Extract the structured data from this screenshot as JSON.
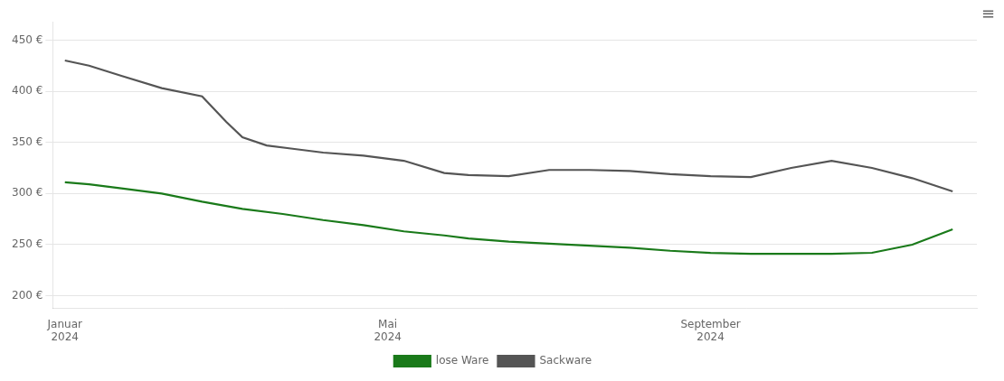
{
  "chart_data": {
    "type": "line",
    "series": [
      {
        "name": "lose Ware",
        "color": "#1a7a1a",
        "x": [
          0,
          0.3,
          0.7,
          1.2,
          1.7,
          2.2,
          2.7,
          3.2,
          3.7,
          4.2,
          4.7,
          5.0,
          5.5,
          6.0,
          6.5,
          7.0,
          7.5,
          8.0,
          8.5,
          9.0,
          9.5,
          10.0,
          10.5,
          11.0
        ],
        "values": [
          311,
          309,
          305,
          300,
          292,
          285,
          280,
          274,
          269,
          263,
          259,
          256,
          253,
          251,
          249,
          247,
          244,
          242,
          241,
          241,
          241,
          242,
          250,
          265
        ]
      },
      {
        "name": "Sackware",
        "color": "#555555",
        "x": [
          0,
          0.3,
          0.7,
          1.2,
          1.7,
          2.0,
          2.2,
          2.5,
          2.8,
          3.2,
          3.7,
          4.2,
          4.7,
          5.0,
          5.5,
          6.0,
          6.5,
          7.0,
          7.5,
          8.0,
          8.5,
          9.0,
          9.5,
          10.0,
          10.5,
          11.0
        ],
        "values": [
          430,
          425,
          415,
          403,
          395,
          370,
          355,
          347,
          344,
          340,
          337,
          332,
          320,
          318,
          317,
          323,
          323,
          322,
          319,
          317,
          316,
          325,
          332,
          325,
          315,
          302
        ]
      }
    ],
    "xlim": [
      -0.15,
      11.3
    ],
    "xticks": [
      {
        "value": 0,
        "label": "Januar\n2024"
      },
      {
        "value": 4,
        "label": "Mai\n2024"
      },
      {
        "value": 8,
        "label": "September\n2024"
      }
    ],
    "ylim": [
      188,
      468
    ],
    "yticks": [
      {
        "value": 200,
        "label": "200 €"
      },
      {
        "value": 250,
        "label": "250 €"
      },
      {
        "value": 300,
        "label": "300 €"
      },
      {
        "value": 350,
        "label": "350 €"
      },
      {
        "value": 400,
        "label": "400 €"
      },
      {
        "value": 450,
        "label": "450 €"
      }
    ],
    "grid": "y",
    "legend": "bottom",
    "annotations": [
      "≡"
    ]
  }
}
